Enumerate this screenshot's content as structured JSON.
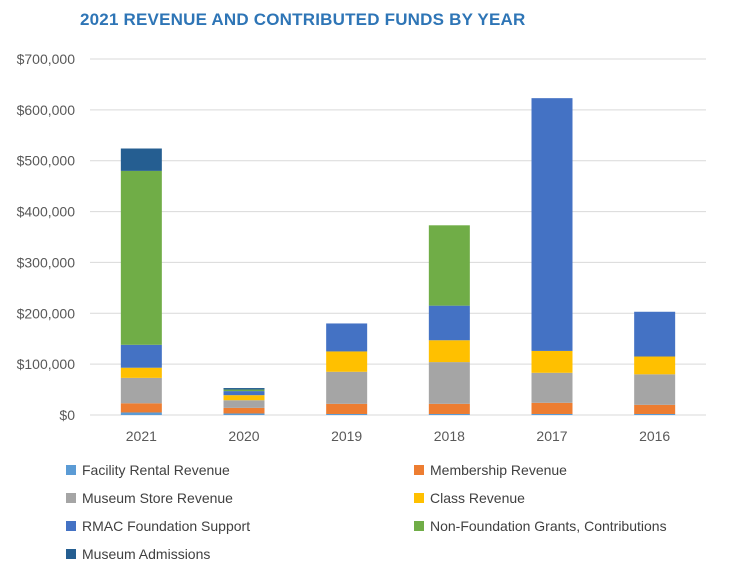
{
  "chart_data": {
    "type": "bar",
    "stacked": true,
    "title": "2021 REVENUE AND CONTRIBUTED FUNDS BY YEAR",
    "xlabel": "",
    "ylabel": "",
    "categories": [
      "2021",
      "2020",
      "2019",
      "2018",
      "2017",
      "2016"
    ],
    "ylim": [
      0,
      700000
    ],
    "yticks": [
      {
        "value": 0,
        "label": "$0"
      },
      {
        "value": 100000,
        "label": "$100,000"
      },
      {
        "value": 200000,
        "label": "$200,000"
      },
      {
        "value": 300000,
        "label": "$300,000"
      },
      {
        "value": 400000,
        "label": "$400,000"
      },
      {
        "value": 500000,
        "label": "$500,000"
      },
      {
        "value": 600000,
        "label": "$600,000"
      },
      {
        "value": 700000,
        "label": "$700,000"
      }
    ],
    "grid": true,
    "legend_position": "bottom",
    "series": [
      {
        "name": "Facility Rental Revenue",
        "color": "#5B9BD5",
        "values": [
          5000,
          3000,
          2000,
          2000,
          2000,
          2000
        ]
      },
      {
        "name": "Membership Revenue",
        "color": "#ED7D31",
        "values": [
          18000,
          11000,
          20000,
          20000,
          22000,
          18000
        ]
      },
      {
        "name": "Museum Store Revenue",
        "color": "#A5A5A5",
        "values": [
          50000,
          15000,
          63000,
          82000,
          59000,
          60000
        ]
      },
      {
        "name": "Class Revenue",
        "color": "#FFC000",
        "values": [
          20000,
          10000,
          40000,
          43000,
          43000,
          35000
        ]
      },
      {
        "name": "RMAC Foundation Support",
        "color": "#4472C4",
        "values": [
          45000,
          8000,
          55000,
          68000,
          497000,
          88000
        ]
      },
      {
        "name": "Non-Foundation Grants, Contributions",
        "color": "#70AD47",
        "values": [
          342000,
          3000,
          0,
          158000,
          0,
          0
        ]
      },
      {
        "name": "Museum Admissions",
        "color": "#255E91",
        "values": [
          44000,
          3000,
          0,
          0,
          0,
          0
        ]
      }
    ]
  }
}
